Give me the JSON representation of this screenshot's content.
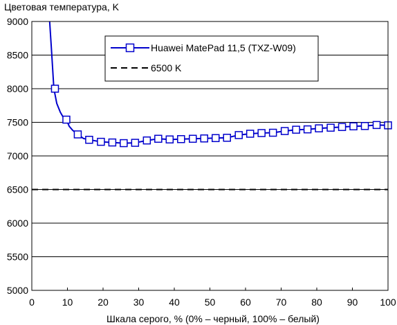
{
  "chart_data": {
    "type": "line",
    "title": "",
    "ylabel": "Цветовая температура, K",
    "xlabel": "Шкала серого, % (0% – черный, 100% – белый)",
    "xlim": [
      0,
      100
    ],
    "ylim": [
      5000,
      9000
    ],
    "xticks": [
      "0",
      "10",
      "20",
      "30",
      "40",
      "50",
      "60",
      "70",
      "80",
      "90",
      "100"
    ],
    "yticks": [
      "5000",
      "5500",
      "6000",
      "6500",
      "7000",
      "7500",
      "8000",
      "8500",
      "9000"
    ],
    "grid": "horizontal",
    "legend_position": "top-right",
    "series": [
      {
        "name": "Huawei MatePad 11,5 (TXZ-W09)",
        "color": "#0000cc",
        "marker": "square-open",
        "line_x": [
          5.0,
          5.5,
          6.2,
          7.0,
          8.0,
          9.0,
          9.7,
          10.5,
          11.5,
          12.9,
          14.5,
          16.1
        ],
        "line_y": [
          9000,
          8600,
          8000,
          7780,
          7650,
          7560,
          7540,
          7440,
          7380,
          7320,
          7260,
          7240
        ],
        "x": [
          6.5,
          9.7,
          12.9,
          16.1,
          19.4,
          22.6,
          25.8,
          29.0,
          32.3,
          35.5,
          38.7,
          41.9,
          45.2,
          48.4,
          51.6,
          54.8,
          58.1,
          61.3,
          64.5,
          67.7,
          71.0,
          74.2,
          77.4,
          80.6,
          83.9,
          87.1,
          90.3,
          93.5,
          96.8,
          100.0
        ],
        "y": [
          8000,
          7540,
          7320,
          7240,
          7210,
          7200,
          7190,
          7195,
          7230,
          7255,
          7245,
          7250,
          7255,
          7260,
          7265,
          7270,
          7310,
          7330,
          7340,
          7345,
          7370,
          7390,
          7395,
          7410,
          7420,
          7430,
          7440,
          7445,
          7460,
          7455
        ]
      },
      {
        "name": "6500 K",
        "color": "#000000",
        "dash": "dashed",
        "x": [
          0,
          100
        ],
        "y": [
          6500,
          6500
        ]
      }
    ]
  }
}
